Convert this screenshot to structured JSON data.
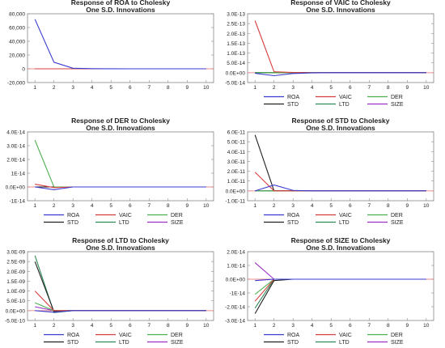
{
  "colors": {
    "ROA": "#3a3ad2",
    "VAIC": "#d63c3c",
    "DER": "#4caf50",
    "STD": "#222222",
    "LTD": "#2e8b57",
    "SIZE": "#9b30c8",
    "frame": "#888888",
    "zero_line": "#e06a6a"
  },
  "legend_labels": [
    "ROA",
    "VAIC",
    "DER",
    "STD",
    "LTD",
    "SIZE"
  ],
  "chart_data": [
    {
      "type": "line",
      "title": "Response of ROA to Cholesky",
      "subtitle": "One S.D. Innovations",
      "xlabel": "",
      "ylabel": "",
      "x": [
        1,
        2,
        3,
        4,
        5,
        6,
        7,
        8,
        9,
        10
      ],
      "ylim": [
        -20000,
        80000
      ],
      "ytick_values": [
        -20000,
        0,
        20000,
        40000,
        60000,
        80000
      ],
      "ytick_labels": [
        "-20,000",
        "0",
        "20,000",
        "40,000",
        "60,000",
        "80,000"
      ],
      "legend": "none",
      "series": [
        {
          "name": "ROA",
          "values": [
            72000,
            9500,
            800,
            200,
            50,
            10,
            0,
            0,
            0,
            0
          ]
        },
        {
          "name": "VAIC",
          "values": [
            0,
            0,
            0,
            0,
            0,
            0,
            0,
            0,
            0,
            0
          ]
        },
        {
          "name": "DER",
          "values": [
            0,
            0,
            0,
            0,
            0,
            0,
            0,
            0,
            0,
            0
          ]
        },
        {
          "name": "STD",
          "values": [
            0,
            0,
            0,
            0,
            0,
            0,
            0,
            0,
            0,
            0
          ]
        },
        {
          "name": "LTD",
          "values": [
            0,
            0,
            0,
            0,
            0,
            0,
            0,
            0,
            0,
            0
          ]
        },
        {
          "name": "SIZE",
          "values": [
            0,
            0,
            0,
            0,
            0,
            0,
            0,
            0,
            0,
            0
          ]
        }
      ]
    },
    {
      "type": "line",
      "title": "Response of VAIC to Cholesky",
      "subtitle": "One S.D. Innovations",
      "xlabel": "",
      "ylabel": "",
      "x": [
        1,
        2,
        3,
        4,
        5,
        6,
        7,
        8,
        9,
        10
      ],
      "ylim": [
        -5e-14,
        3e-13
      ],
      "ytick_values": [
        -5e-14,
        0,
        5e-14,
        1e-13,
        1.5e-13,
        2e-13,
        2.5e-13,
        3e-13
      ],
      "ytick_labels": [
        "-5.0E-14",
        "0.0E+00",
        "5.0E-14",
        "1.0E-13",
        "1.5E-13",
        "2.0E-13",
        "2.5E-13",
        "3.0E-13"
      ],
      "legend": "bottom",
      "series": [
        {
          "name": "ROA",
          "values": [
            -3e-15,
            -1.5e-14,
            -4e-15,
            -1e-15,
            0,
            0,
            0,
            0,
            0,
            0
          ]
        },
        {
          "name": "VAIC",
          "values": [
            2.65e-13,
            5e-15,
            1e-15,
            0,
            0,
            0,
            0,
            0,
            0,
            0
          ]
        },
        {
          "name": "DER",
          "values": [
            0,
            0,
            0,
            0,
            0,
            0,
            0,
            0,
            0,
            0
          ]
        },
        {
          "name": "STD",
          "values": [
            0,
            0,
            0,
            0,
            0,
            0,
            0,
            0,
            0,
            0
          ]
        },
        {
          "name": "LTD",
          "values": [
            0,
            0,
            0,
            0,
            0,
            0,
            0,
            0,
            0,
            0
          ]
        },
        {
          "name": "SIZE",
          "values": [
            0,
            0,
            0,
            0,
            0,
            0,
            0,
            0,
            0,
            0
          ]
        }
      ]
    },
    {
      "type": "line",
      "title": "Response of DER to Cholesky",
      "subtitle": "One S.D. Innovations",
      "xlabel": "",
      "ylabel": "",
      "x": [
        1,
        2,
        3,
        4,
        5,
        6,
        7,
        8,
        9,
        10
      ],
      "ylim": [
        -1e-14,
        4e-14
      ],
      "ytick_values": [
        -1e-14,
        0,
        1e-14,
        2e-14,
        3e-14,
        4e-14
      ],
      "ytick_labels": [
        "-1E-14",
        "0.0E+00",
        "1E-14",
        "2.0E-14",
        "3.0E-14",
        "4.0E-14"
      ],
      "legend": "bottom",
      "series": [
        {
          "name": "ROA",
          "values": [
            0,
            -2e-15,
            0,
            0,
            0,
            0,
            0,
            0,
            0,
            0
          ]
        },
        {
          "name": "VAIC",
          "values": [
            2e-15,
            -5e-16,
            0,
            0,
            0,
            0,
            0,
            0,
            0,
            0
          ]
        },
        {
          "name": "DER",
          "values": [
            3.4e-14,
            0,
            0,
            0,
            0,
            0,
            0,
            0,
            0,
            0
          ]
        },
        {
          "name": "STD",
          "values": [
            0,
            0,
            0,
            0,
            0,
            0,
            0,
            0,
            0,
            0
          ]
        },
        {
          "name": "LTD",
          "values": [
            0,
            0,
            0,
            0,
            0,
            0,
            0,
            0,
            0,
            0
          ]
        },
        {
          "name": "SIZE",
          "values": [
            0,
            0,
            0,
            0,
            0,
            0,
            0,
            0,
            0,
            0
          ]
        }
      ]
    },
    {
      "type": "line",
      "title": "Response of STD to Cholesky",
      "subtitle": "One S.D. Innovations",
      "xlabel": "",
      "ylabel": "",
      "x": [
        1,
        2,
        3,
        4,
        5,
        6,
        7,
        8,
        9,
        10
      ],
      "ylim": [
        -1e-11,
        6e-11
      ],
      "ytick_values": [
        -1e-11,
        0,
        1e-11,
        2e-11,
        3e-11,
        4e-11,
        5e-11,
        6e-11
      ],
      "ytick_labels": [
        "-1.0E-11",
        "0.0E+00",
        "1.0E-11",
        "2.0E-11",
        "3.0E-11",
        "4.0E-11",
        "5.0E-11",
        "6.0E-11"
      ],
      "legend": "bottom",
      "series": [
        {
          "name": "ROA",
          "values": [
            0,
            6e-12,
            5e-13,
            0,
            0,
            0,
            0,
            0,
            0,
            0
          ]
        },
        {
          "name": "VAIC",
          "values": [
            1.9e-11,
            0,
            0,
            0,
            0,
            0,
            0,
            0,
            0,
            0
          ]
        },
        {
          "name": "DER",
          "values": [
            0,
            0,
            0,
            0,
            0,
            0,
            0,
            0,
            0,
            0
          ]
        },
        {
          "name": "STD",
          "values": [
            5.7e-11,
            0,
            0,
            0,
            0,
            0,
            0,
            0,
            0,
            0
          ]
        },
        {
          "name": "LTD",
          "values": [
            0,
            0,
            0,
            0,
            0,
            0,
            0,
            0,
            0,
            0
          ]
        },
        {
          "name": "SIZE",
          "values": [
            0,
            0,
            0,
            0,
            0,
            0,
            0,
            0,
            0,
            0
          ]
        }
      ]
    },
    {
      "type": "line",
      "title": "Response of LTD to Cholesky",
      "subtitle": "One S.D. Innovations",
      "xlabel": "",
      "ylabel": "",
      "x": [
        1,
        2,
        3,
        4,
        5,
        6,
        7,
        8,
        9,
        10
      ],
      "ylim": [
        -5e-10,
        3e-09
      ],
      "ytick_values": [
        -5e-10,
        0,
        5e-10,
        1e-09,
        1.5e-09,
        2e-09,
        2.5e-09,
        3e-09
      ],
      "ytick_labels": [
        "-5.0E-10",
        "0.0E+00",
        "5.0E-10",
        "1.0E-09",
        "1.5E-09",
        "2.0E-09",
        "2.5E-09",
        "3.0E-09"
      ],
      "legend": "bottom",
      "series": [
        {
          "name": "ROA",
          "values": [
            0,
            -8e-11,
            0,
            0,
            0,
            0,
            0,
            0,
            0,
            0
          ]
        },
        {
          "name": "VAIC",
          "values": [
            1e-09,
            0,
            0,
            0,
            0,
            0,
            0,
            0,
            0,
            0
          ]
        },
        {
          "name": "DER",
          "values": [
            4e-10,
            0,
            0,
            0,
            0,
            0,
            0,
            0,
            0,
            0
          ]
        },
        {
          "name": "STD",
          "values": [
            2.5e-09,
            -5e-11,
            0,
            0,
            0,
            0,
            0,
            0,
            0,
            0
          ]
        },
        {
          "name": "LTD",
          "values": [
            2.8e-09,
            -1e-10,
            0,
            0,
            0,
            0,
            0,
            0,
            0,
            0
          ]
        },
        {
          "name": "SIZE",
          "values": [
            2e-10,
            0,
            0,
            0,
            0,
            0,
            0,
            0,
            0,
            0
          ]
        }
      ]
    },
    {
      "type": "line",
      "title": "Response of SIZE to Cholesky",
      "subtitle": "One S.D. Innovations",
      "xlabel": "",
      "ylabel": "",
      "x": [
        1,
        2,
        3,
        4,
        5,
        6,
        7,
        8,
        9,
        10
      ],
      "ylim": [
        -3e-14,
        2e-14
      ],
      "ytick_values": [
        -3e-14,
        -2e-14,
        -1e-14,
        0,
        1e-14,
        2e-14
      ],
      "ytick_labels": [
        "-3.0E-14",
        "-2.0E-14",
        "-1E-14",
        "0.0E+00",
        "1.0E-14",
        "2.0E-14"
      ],
      "legend": "bottom",
      "series": [
        {
          "name": "ROA",
          "values": [
            -1e-15,
            0,
            0,
            0,
            0,
            0,
            0,
            0,
            0,
            0
          ]
        },
        {
          "name": "VAIC",
          "values": [
            -1.6e-14,
            0,
            0,
            0,
            0,
            0,
            0,
            0,
            0,
            0
          ]
        },
        {
          "name": "DER",
          "values": [
            -1.1e-14,
            0,
            0,
            0,
            0,
            0,
            0,
            0,
            0,
            0
          ]
        },
        {
          "name": "STD",
          "values": [
            -2.5e-14,
            -1e-15,
            0,
            0,
            0,
            0,
            0,
            0,
            0,
            0
          ]
        },
        {
          "name": "LTD",
          "values": [
            -2.1e-14,
            0,
            0,
            0,
            0,
            0,
            0,
            0,
            0,
            0
          ]
        },
        {
          "name": "SIZE",
          "values": [
            1.2e-14,
            0,
            0,
            0,
            0,
            0,
            0,
            0,
            0,
            0
          ]
        }
      ]
    }
  ]
}
